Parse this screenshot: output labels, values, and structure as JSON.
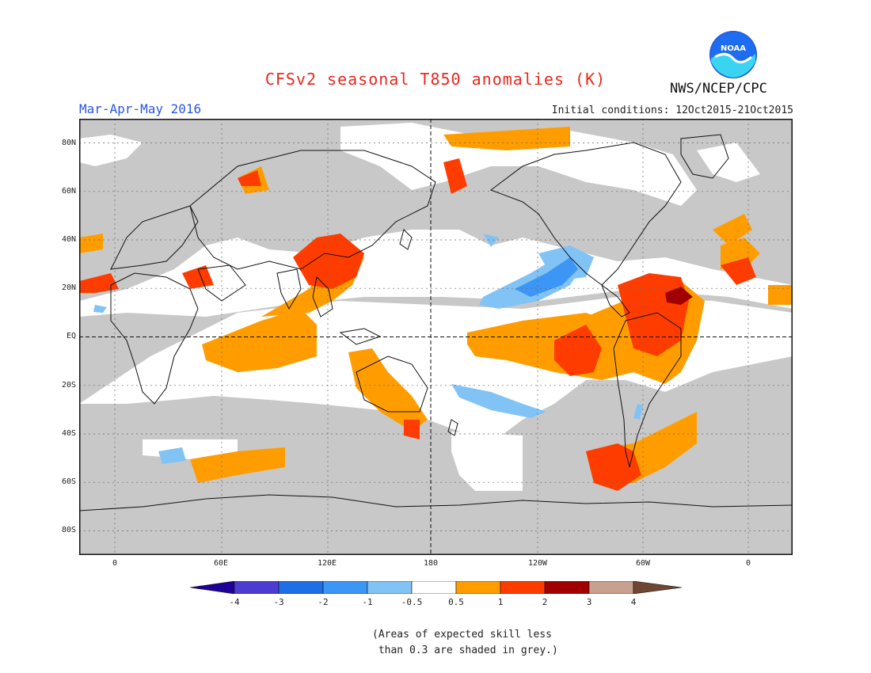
{
  "header": {
    "title": "CFSv2 seasonal T850 anomalies (K)",
    "season": "Mar-Apr-May 2016",
    "initial_conditions": "Initial conditions: 12Oct2015-21Oct2015",
    "agency": "NWS/NCEP/CPC",
    "logo_text": "NOAA"
  },
  "axes": {
    "lat_labels": [
      "80N",
      "60N",
      "40N",
      "20N",
      "EQ",
      "20S",
      "40S",
      "60S",
      "80S"
    ],
    "lon_labels": [
      "0",
      "60E",
      "120E",
      "180",
      "120W",
      "60W",
      "0"
    ]
  },
  "legend": {
    "tick_labels": [
      "-4",
      "-3",
      "-2",
      "-1",
      "-0.5",
      "0.5",
      "1",
      "2",
      "3",
      "4"
    ],
    "colors": [
      "#1e0096",
      "#4c3cd2",
      "#1e6ee6",
      "#3c96f5",
      "#82c3f5",
      "#ffffff",
      "#ff9d00",
      "#ff3c00",
      "#a00000",
      "#c8a090",
      "#6e4632"
    ],
    "note_line1": "(Areas of expected skill less",
    "note_line2": " than 0.3 are shaded in grey.)"
  },
  "colors": {
    "grey": "#c8c8c8",
    "title": "#e8281e",
    "season": "#2b55e6"
  }
}
